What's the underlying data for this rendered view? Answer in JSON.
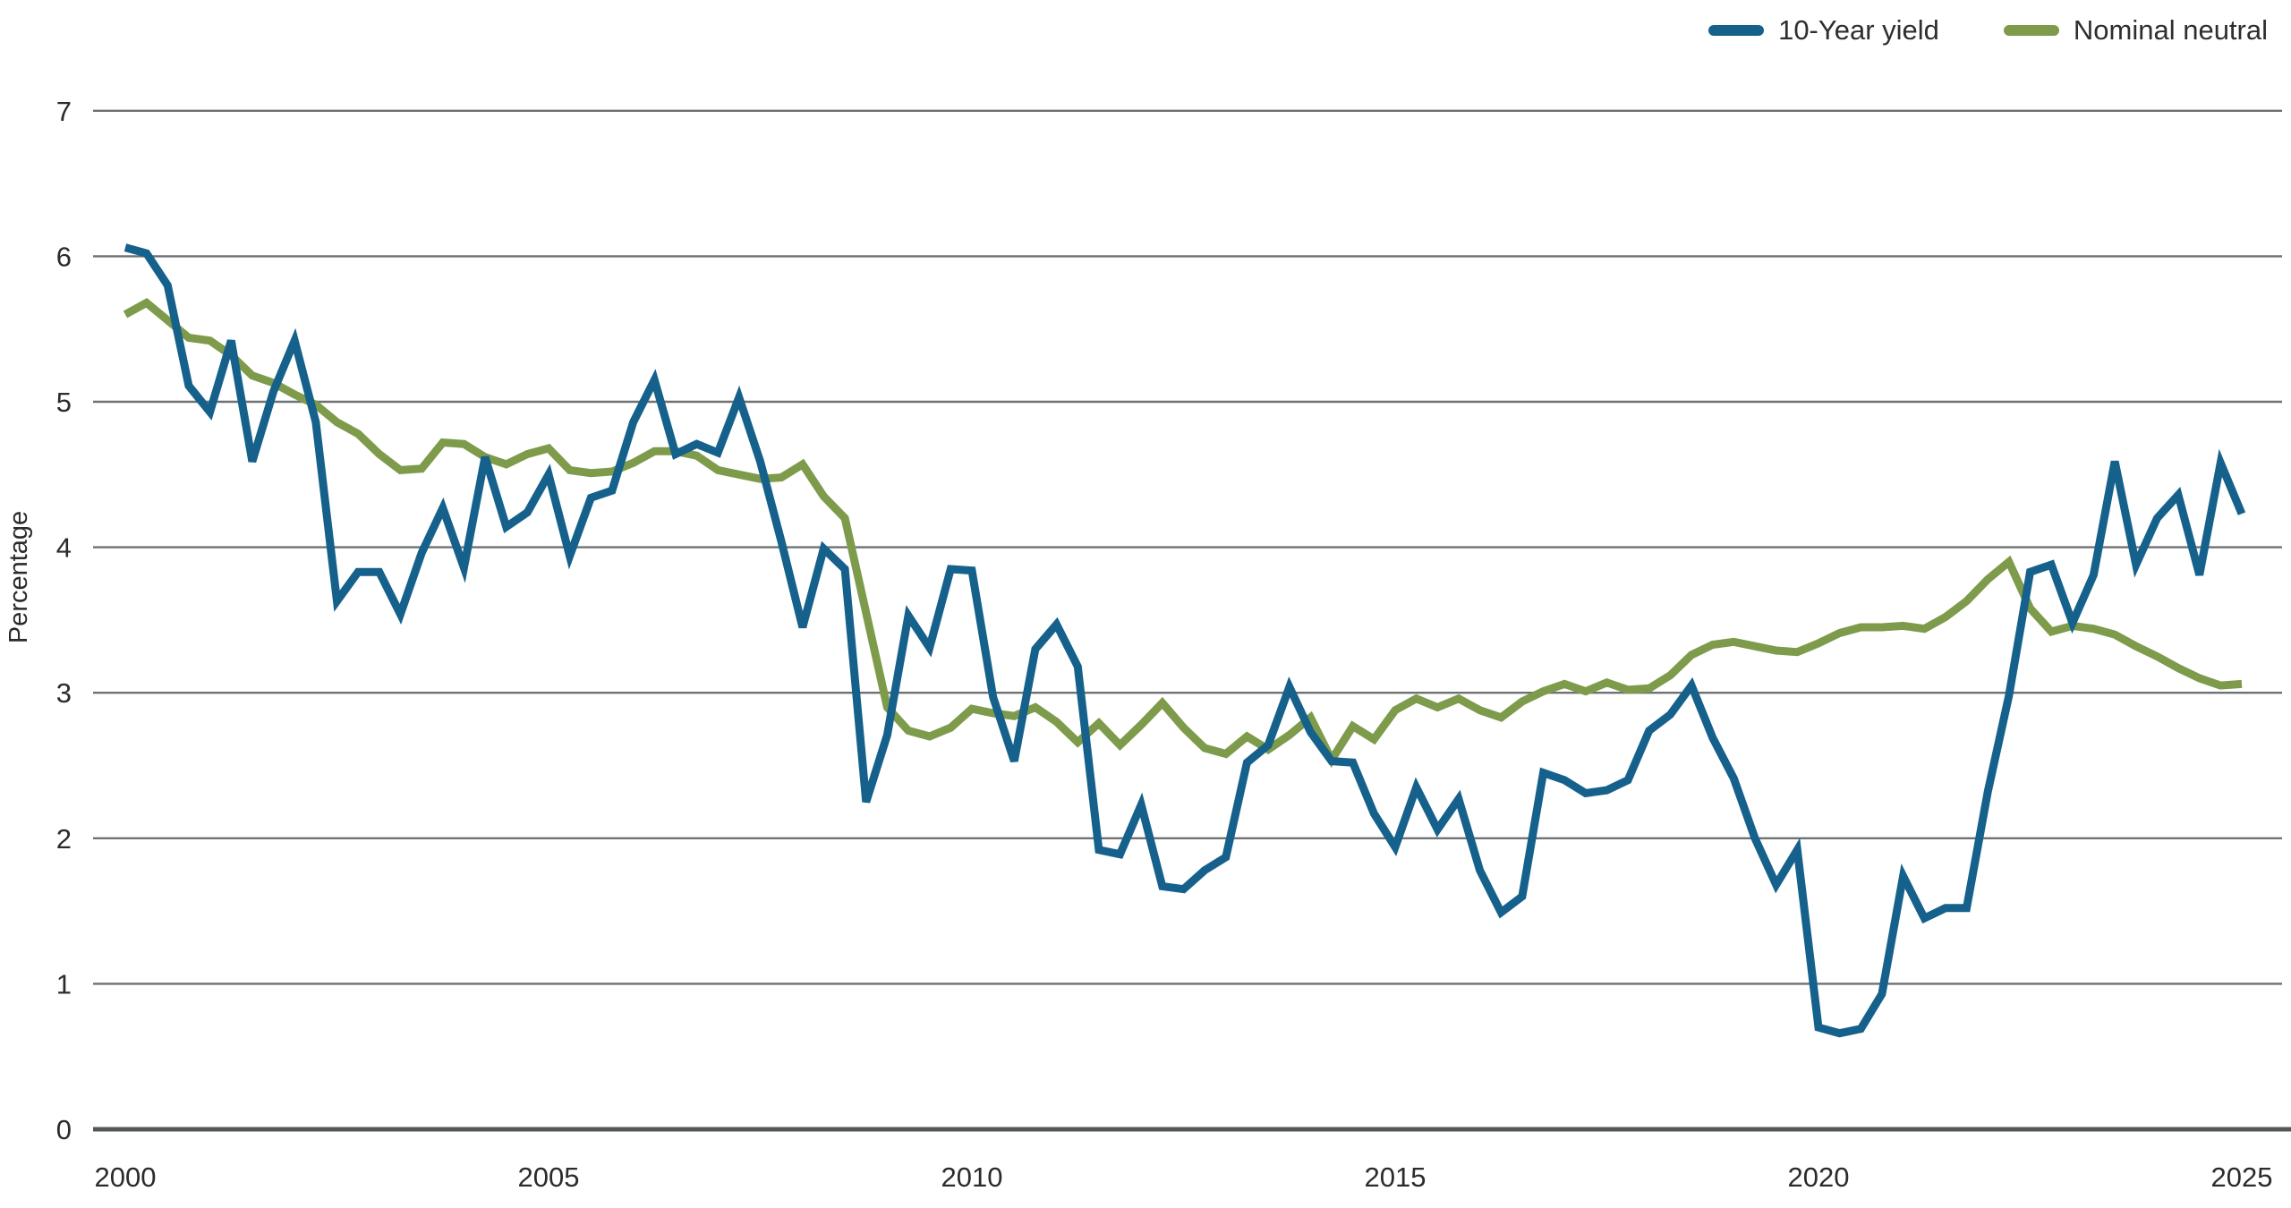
{
  "chart_data": {
    "type": "line",
    "title": "",
    "xlabel": "",
    "ylabel": "Percentage",
    "grid": true,
    "legend_position": "top-right",
    "ylim": [
      0,
      7
    ],
    "yticks": [
      0,
      1,
      2,
      3,
      4,
      5,
      6,
      7
    ],
    "xticks": [
      2000,
      2005,
      2010,
      2015,
      2020,
      2025
    ],
    "x_start": 2000.0,
    "x_step": 0.25,
    "x_frequency": "quarterly",
    "series": [
      {
        "name": "10-Year yield",
        "color": "#15618C",
        "values": [
          6.06,
          6.02,
          5.8,
          5.11,
          4.93,
          5.42,
          4.59,
          5.07,
          5.42,
          4.86,
          3.63,
          3.83,
          3.83,
          3.54,
          3.96,
          4.27,
          3.86,
          4.62,
          4.14,
          4.24,
          4.5,
          3.94,
          4.34,
          4.39,
          4.86,
          5.15,
          4.64,
          4.71,
          4.65,
          5.03,
          4.59,
          4.04,
          3.45,
          3.99,
          3.85,
          2.25,
          2.71,
          3.53,
          3.31,
          3.85,
          3.84,
          2.97,
          2.53,
          3.3,
          3.47,
          3.18,
          1.92,
          1.89,
          2.23,
          1.67,
          1.65,
          1.78,
          1.87,
          2.52,
          2.64,
          3.04,
          2.73,
          2.53,
          2.52,
          2.17,
          1.94,
          2.35,
          2.06,
          2.27,
          1.78,
          1.49,
          1.6,
          2.45,
          2.4,
          2.31,
          2.33,
          2.4,
          2.74,
          2.85,
          3.05,
          2.69,
          2.41,
          2.0,
          1.68,
          1.92,
          0.7,
          0.66,
          0.69,
          0.93,
          1.74,
          1.45,
          1.52,
          1.52,
          2.32,
          2.98,
          3.83,
          3.88,
          3.48,
          3.81,
          4.59,
          3.88,
          4.2,
          4.36,
          3.81,
          4.58,
          4.23
        ]
      },
      {
        "name": "Nominal neutral",
        "color": "#7D9B4A",
        "values": [
          5.6,
          5.68,
          5.56,
          5.44,
          5.42,
          5.32,
          5.18,
          5.13,
          5.05,
          4.98,
          4.86,
          4.78,
          4.64,
          4.53,
          4.54,
          4.72,
          4.71,
          4.62,
          4.57,
          4.64,
          4.68,
          4.53,
          4.51,
          4.52,
          4.58,
          4.66,
          4.66,
          4.63,
          4.53,
          4.5,
          4.47,
          4.48,
          4.57,
          4.35,
          4.2,
          3.55,
          2.9,
          2.74,
          2.7,
          2.76,
          2.89,
          2.86,
          2.84,
          2.9,
          2.8,
          2.66,
          2.79,
          2.64,
          2.78,
          2.93,
          2.76,
          2.62,
          2.58,
          2.7,
          2.61,
          2.71,
          2.83,
          2.54,
          2.77,
          2.68,
          2.88,
          2.96,
          2.9,
          2.96,
          2.88,
          2.83,
          2.94,
          3.01,
          3.06,
          3.01,
          3.07,
          3.02,
          3.03,
          3.12,
          3.26,
          3.33,
          3.35,
          3.32,
          3.29,
          3.28,
          3.34,
          3.41,
          3.45,
          3.45,
          3.46,
          3.44,
          3.52,
          3.63,
          3.78,
          3.9,
          3.58,
          3.42,
          3.46,
          3.44,
          3.4,
          3.32,
          3.25,
          3.17,
          3.1,
          3.05,
          3.06
        ]
      }
    ]
  },
  "legend": {
    "items": [
      {
        "label": "10-Year yield",
        "color": "#15618C"
      },
      {
        "label": "Nominal neutral",
        "color": "#7D9B4A"
      }
    ]
  },
  "axes": {
    "ylabel": "Percentage",
    "ytick_labels": [
      "0",
      "1",
      "2",
      "3",
      "4",
      "5",
      "6",
      "7"
    ],
    "xtick_labels": [
      "2000",
      "2005",
      "2010",
      "2015",
      "2020",
      "2025"
    ]
  },
  "colors": {
    "line_blue": "#15618C",
    "line_green": "#7D9B4A",
    "gridline": "#6E7173",
    "zero_axis": "#54575A",
    "text": "#2B2B2B",
    "background": "#FFFFFF"
  }
}
